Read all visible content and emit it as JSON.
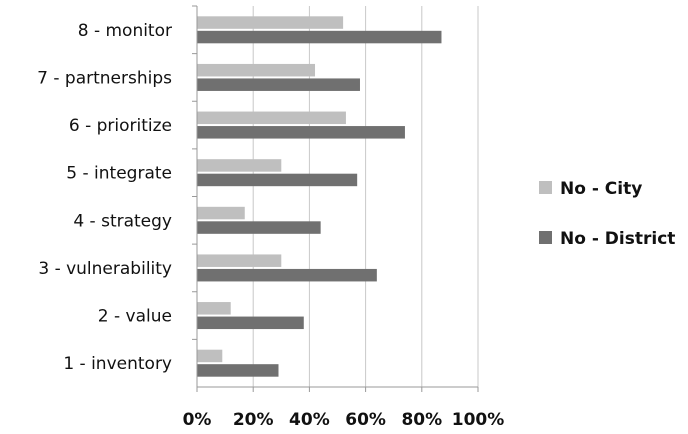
{
  "chart_data": {
    "type": "bar",
    "orientation": "horizontal",
    "categories": [
      "1 - inventory",
      "2 - value",
      "3 - vulnerability",
      "4 - strategy",
      "5 - integrate",
      "6 - prioritize",
      "7 - partnerships",
      "8 - monitor"
    ],
    "series": [
      {
        "name": "No - City",
        "color": "#bfbfbf",
        "values": [
          9,
          12,
          30,
          17,
          30,
          53,
          42,
          52
        ]
      },
      {
        "name": "No - District",
        "color": "#707070",
        "values": [
          29,
          38,
          64,
          44,
          57,
          74,
          58,
          87
        ]
      }
    ],
    "xlim": [
      0,
      100
    ],
    "xticks": [
      "0%",
      "20%",
      "40%",
      "60%",
      "80%",
      "100%"
    ],
    "grid": "vertical",
    "legend_position": "right"
  }
}
